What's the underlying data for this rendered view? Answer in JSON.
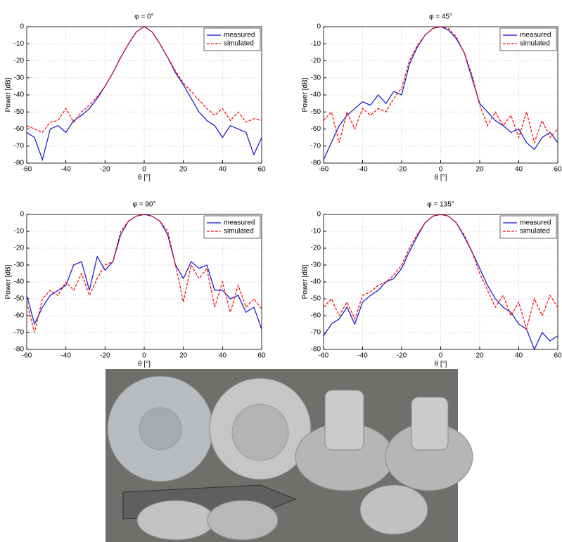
{
  "chart_data": [
    {
      "type": "line",
      "title": "φ = 0°",
      "xlabel": "θ [°]",
      "ylabel": "Power [dB]",
      "x": [
        -60,
        -56,
        -52,
        -48,
        -44,
        -40,
        -36,
        -32,
        -28,
        -24,
        -20,
        -16,
        -12,
        -8,
        -4,
        0,
        4,
        8,
        12,
        16,
        20,
        24,
        28,
        32,
        36,
        40,
        44,
        48,
        52,
        56,
        60
      ],
      "series": [
        {
          "name": "measured",
          "color": "#1010d0",
          "linestyle": "solid",
          "values": [
            -62,
            -65,
            -78,
            -60,
            -58,
            -62,
            -55,
            -52,
            -48,
            -42,
            -35,
            -27,
            -18,
            -10,
            -3,
            0,
            -3,
            -10,
            -18,
            -27,
            -34,
            -42,
            -50,
            -55,
            -58,
            -65,
            -58,
            -60,
            -62,
            -75,
            -65
          ]
        },
        {
          "name": "simulated",
          "color": "#ff0000",
          "linestyle": "dashed",
          "values": [
            -58,
            -60,
            -62,
            -56,
            -55,
            -48,
            -56,
            -50,
            -46,
            -41,
            -35,
            -27,
            -18,
            -10,
            -3,
            0,
            -3,
            -10,
            -18,
            -26,
            -33,
            -38,
            -43,
            -48,
            -52,
            -48,
            -55,
            -50,
            -56,
            -54,
            -55
          ]
        }
      ],
      "xlim": [
        -60,
        60
      ],
      "ylim": [
        -80,
        0
      ],
      "xticks": [
        -60,
        -40,
        -20,
        0,
        20,
        40,
        60
      ],
      "yticks": [
        -80,
        -70,
        -60,
        -50,
        -40,
        -30,
        -20,
        -10,
        0
      ],
      "grid": true,
      "legend": "upper right"
    },
    {
      "type": "line",
      "title": "φ = 45°",
      "xlabel": "θ [°]",
      "ylabel": "Power [dB]",
      "x": [
        -60,
        -56,
        -52,
        -48,
        -44,
        -40,
        -36,
        -32,
        -28,
        -24,
        -20,
        -16,
        -12,
        -8,
        -4,
        0,
        4,
        8,
        12,
        16,
        20,
        24,
        28,
        32,
        36,
        40,
        44,
        48,
        52,
        56,
        60
      ],
      "series": [
        {
          "name": "measured",
          "color": "#1010d0",
          "linestyle": "solid",
          "values": [
            -78,
            -68,
            -58,
            -52,
            -48,
            -44,
            -46,
            -40,
            -45,
            -38,
            -40,
            -22,
            -12,
            -5,
            -1,
            0,
            -2,
            -7,
            -15,
            -30,
            -45,
            -50,
            -55,
            -58,
            -62,
            -60,
            -68,
            -72,
            -65,
            -62,
            -68
          ]
        },
        {
          "name": "simulated",
          "color": "#ff0000",
          "linestyle": "dashed",
          "values": [
            -55,
            -50,
            -68,
            -50,
            -60,
            -48,
            -52,
            -48,
            -50,
            -42,
            -36,
            -20,
            -11,
            -5,
            -1,
            0,
            -1,
            -6,
            -15,
            -28,
            -46,
            -58,
            -50,
            -58,
            -52,
            -65,
            -50,
            -68,
            -55,
            -65,
            -60
          ]
        }
      ],
      "xlim": [
        -60,
        60
      ],
      "ylim": [
        -80,
        0
      ],
      "xticks": [
        -60,
        -40,
        -20,
        0,
        20,
        40,
        60
      ],
      "yticks": [
        -80,
        -70,
        -60,
        -50,
        -40,
        -30,
        -20,
        -10,
        0
      ],
      "grid": true,
      "legend": "upper right"
    },
    {
      "type": "line",
      "title": "φ = 90°",
      "xlabel": "θ [°]",
      "ylabel": "Power [dB]",
      "x": [
        -60,
        -56,
        -52,
        -48,
        -44,
        -40,
        -36,
        -32,
        -28,
        -24,
        -20,
        -16,
        -12,
        -8,
        -4,
        0,
        4,
        8,
        12,
        16,
        20,
        24,
        28,
        32,
        36,
        40,
        44,
        48,
        52,
        56,
        60
      ],
      "series": [
        {
          "name": "measured",
          "color": "#1010d0",
          "linestyle": "solid",
          "values": [
            -48,
            -65,
            -55,
            -48,
            -45,
            -42,
            -30,
            -28,
            -45,
            -25,
            -33,
            -28,
            -12,
            -4,
            -1,
            0,
            -1,
            -4,
            -12,
            -30,
            -38,
            -28,
            -32,
            -30,
            -45,
            -45,
            -50,
            -48,
            -58,
            -55,
            -68
          ]
        },
        {
          "name": "simulated",
          "color": "#ff0000",
          "linestyle": "dashed",
          "values": [
            -52,
            -70,
            -50,
            -45,
            -48,
            -40,
            -45,
            -35,
            -48,
            -38,
            -30,
            -28,
            -10,
            -4,
            -1,
            0,
            -1,
            -4,
            -10,
            -30,
            -52,
            -30,
            -38,
            -32,
            -55,
            -40,
            -58,
            -42,
            -55,
            -50,
            -56
          ]
        }
      ],
      "xlim": [
        -60,
        60
      ],
      "ylim": [
        -80,
        0
      ],
      "xticks": [
        -60,
        -40,
        -20,
        0,
        20,
        40,
        60
      ],
      "yticks": [
        -80,
        -70,
        -60,
        -50,
        -40,
        -30,
        -20,
        -10,
        0
      ],
      "grid": true,
      "legend": "upper right"
    },
    {
      "type": "line",
      "title": "φ = 135°",
      "xlabel": "θ [°]",
      "ylabel": "Power [dB]",
      "x": [
        -60,
        -56,
        -52,
        -48,
        -44,
        -40,
        -36,
        -32,
        -28,
        -24,
        -20,
        -16,
        -12,
        -8,
        -4,
        0,
        4,
        8,
        12,
        16,
        20,
        24,
        28,
        32,
        36,
        40,
        44,
        48,
        52,
        56,
        60
      ],
      "series": [
        {
          "name": "measured",
          "color": "#1010d0",
          "linestyle": "solid",
          "values": [
            -72,
            -65,
            -62,
            -55,
            -65,
            -52,
            -48,
            -45,
            -40,
            -38,
            -32,
            -22,
            -13,
            -5,
            -1,
            0,
            -1,
            -5,
            -13,
            -22,
            -32,
            -42,
            -50,
            -55,
            -58,
            -65,
            -68,
            -80,
            -70,
            -75,
            -72
          ]
        },
        {
          "name": "simulated",
          "color": "#ff0000",
          "linestyle": "dashed",
          "values": [
            -55,
            -50,
            -60,
            -52,
            -62,
            -48,
            -46,
            -42,
            -40,
            -36,
            -30,
            -20,
            -12,
            -5,
            -1,
            0,
            -1,
            -5,
            -12,
            -22,
            -35,
            -45,
            -55,
            -48,
            -60,
            -52,
            -68,
            -50,
            -60,
            -48,
            -55
          ]
        }
      ],
      "xlim": [
        -60,
        60
      ],
      "ylim": [
        -80,
        0
      ],
      "xticks": [
        -60,
        -40,
        -20,
        0,
        20,
        40,
        60
      ],
      "yticks": [
        -80,
        -70,
        -60,
        -50,
        -40,
        -30,
        -20,
        -10,
        0
      ],
      "grid": true,
      "legend": "upper right"
    }
  ]
}
